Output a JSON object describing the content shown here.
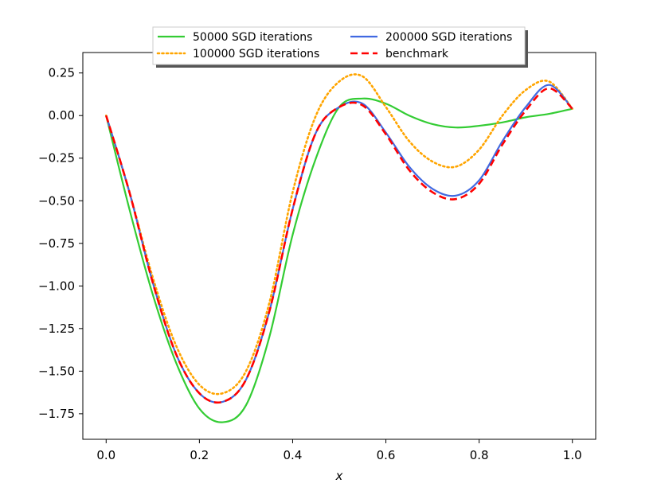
{
  "chart_data": {
    "type": "line",
    "title": "",
    "xlabel": "x",
    "ylabel": "",
    "xlim": [
      -0.05,
      1.05
    ],
    "ylim": [
      -1.9,
      0.37
    ],
    "x_ticks": [
      "0.0",
      "0.2",
      "0.4",
      "0.6",
      "0.8",
      "1.0"
    ],
    "y_ticks": [
      "0.25",
      "0.00",
      "−0.25",
      "−0.50",
      "−0.75",
      "−1.00",
      "−1.25",
      "−1.50",
      "−1.75"
    ],
    "grid": false,
    "legend_position": "top-center",
    "x": [
      0.0,
      0.05,
      0.1,
      0.15,
      0.2,
      0.25,
      0.3,
      0.35,
      0.4,
      0.45,
      0.5,
      0.55,
      0.6,
      0.65,
      0.7,
      0.75,
      0.8,
      0.85,
      0.9,
      0.95,
      1.0
    ],
    "series": [
      {
        "name": "50000 SGD iterations",
        "color": "#33cc33",
        "style": "solid",
        "values": [
          0.0,
          -0.55,
          -1.05,
          -1.45,
          -1.72,
          -1.8,
          -1.7,
          -1.3,
          -0.7,
          -0.25,
          0.05,
          0.1,
          0.07,
          0.0,
          -0.05,
          -0.07,
          -0.06,
          -0.04,
          -0.01,
          0.01,
          0.04
        ]
      },
      {
        "name": "100000 SGD iterations",
        "color": "#ffa500",
        "style": "dotted",
        "values": [
          0.0,
          -0.45,
          -0.95,
          -1.35,
          -1.58,
          -1.63,
          -1.5,
          -1.1,
          -0.45,
          0.0,
          0.2,
          0.23,
          0.05,
          -0.15,
          -0.27,
          -0.3,
          -0.2,
          0.0,
          0.15,
          0.2,
          0.04
        ]
      },
      {
        "name": "200000 SGD iterations",
        "color": "#4169e1",
        "style": "solid",
        "values": [
          0.0,
          -0.45,
          -0.98,
          -1.4,
          -1.63,
          -1.68,
          -1.55,
          -1.15,
          -0.55,
          -0.1,
          0.05,
          0.07,
          -0.1,
          -0.3,
          -0.43,
          -0.47,
          -0.38,
          -0.15,
          0.05,
          0.18,
          0.04
        ]
      },
      {
        "name": "benchmark",
        "color": "#ff0000",
        "style": "dashed",
        "values": [
          0.0,
          -0.45,
          -0.98,
          -1.4,
          -1.63,
          -1.68,
          -1.55,
          -1.15,
          -0.55,
          -0.1,
          0.05,
          0.06,
          -0.11,
          -0.32,
          -0.45,
          -0.49,
          -0.4,
          -0.17,
          0.03,
          0.16,
          0.04
        ]
      }
    ]
  }
}
